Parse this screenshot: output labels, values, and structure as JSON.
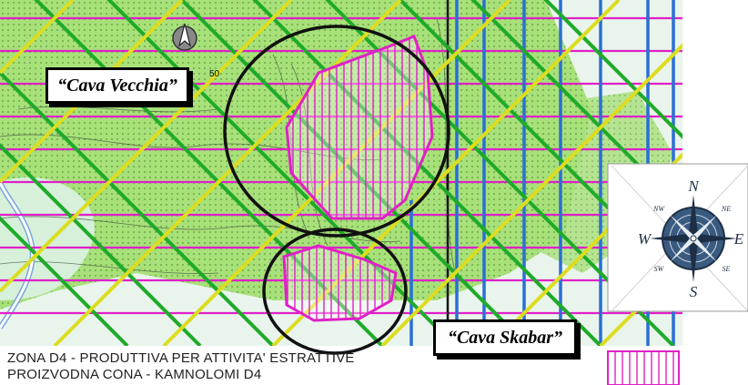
{
  "callouts": {
    "cava_vecchia": "“Cava Vecchia”",
    "cava_skabar": "“Cava Skabar”"
  },
  "scale_label": "50",
  "legend": {
    "line1": "ZONA D4 - PRODUTTIVA PER ATTIVITA' ESTRATTIVE",
    "line2": "PROIZVODNA CONA - KAMNOLOMI D4",
    "swatch_color": "#e020c8"
  },
  "compass": {
    "north": "N",
    "south": "S",
    "east": "E",
    "west": "W",
    "northeast": "NE",
    "northwest": "NW",
    "southeast": "SE",
    "southwest": "SW"
  },
  "colors": {
    "magenta": "#e020c8",
    "green_band": "#1faa2a",
    "yellow_band": "#dddd20",
    "blue_line": "#2a6fd6",
    "light_green": "#a8e07a",
    "road": "#7aa6d8"
  }
}
